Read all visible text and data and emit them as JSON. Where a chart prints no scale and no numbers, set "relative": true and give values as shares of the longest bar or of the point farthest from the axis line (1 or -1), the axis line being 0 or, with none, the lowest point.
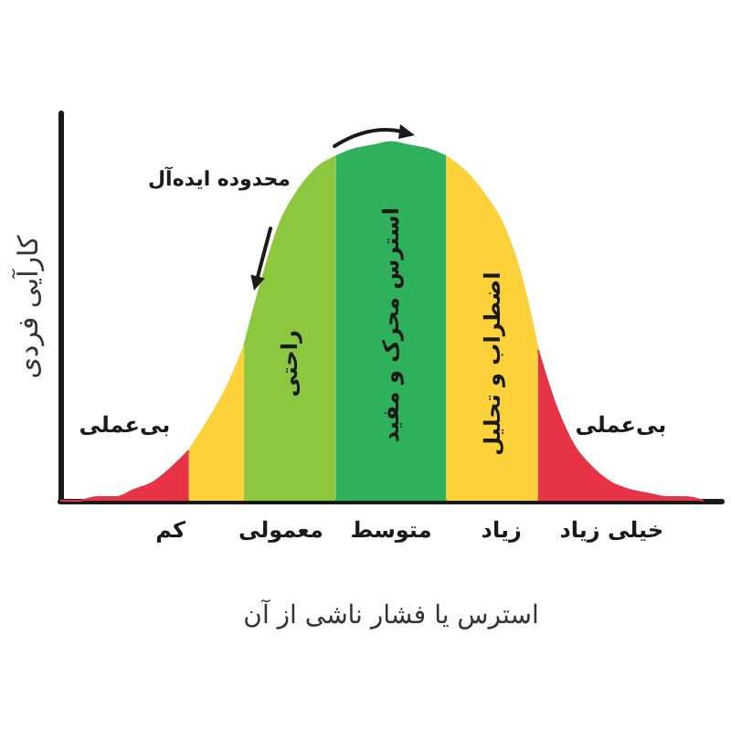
{
  "chart_data": {
    "type": "area",
    "relative": true,
    "xlabel": "استرس یا فشار ناشی از آن",
    "ylabel": "کارآیی فردی",
    "categories": [
      null,
      null,
      null,
      null,
      null,
      null,
      "کم",
      null,
      null,
      null,
      null,
      null,
      "معمولی",
      null,
      null,
      null,
      null,
      null,
      "متوسط",
      null,
      null,
      null,
      null,
      null,
      "زیاد",
      null,
      null,
      null,
      null,
      null,
      "خیلی زیاد",
      null,
      null,
      null,
      null,
      null,
      null
    ],
    "series": [
      {
        "name": "بی‌عملی",
        "color": "#e63346",
        "values": [
          0,
          0,
          0.01,
          0.01,
          0.03,
          0.05,
          0.09,
          0.14,
          null,
          null,
          null,
          null,
          null,
          null,
          null,
          null,
          null,
          null,
          null,
          null,
          null,
          null,
          null,
          null,
          null,
          null,
          null,
          null,
          null,
          null,
          null,
          null,
          null,
          null,
          null,
          null,
          null
        ]
      },
      {
        "color": "#fdd13a",
        "values": [
          null,
          null,
          null,
          null,
          null,
          null,
          null,
          0.14,
          0.22,
          0.31,
          0.43,
          null,
          null,
          null,
          null,
          null,
          null,
          null,
          null,
          null,
          null,
          null,
          null,
          null,
          null,
          null,
          null,
          null,
          null,
          null,
          null,
          null,
          null,
          null,
          null,
          null,
          null
        ]
      },
      {
        "name": "راحتی",
        "color": "#8dc63f",
        "values": [
          null,
          null,
          null,
          null,
          null,
          null,
          null,
          null,
          null,
          null,
          0.43,
          0.62,
          0.78,
          0.87,
          0.93,
          0.96,
          null,
          null,
          null,
          null,
          null,
          null,
          null,
          null,
          null,
          null,
          null,
          null,
          null,
          null,
          null,
          null,
          null,
          null,
          null,
          null,
          null
        ]
      },
      {
        "name": "استرس محرک و مفید",
        "color": "#2fb15c",
        "values": [
          null,
          null,
          null,
          null,
          null,
          null,
          null,
          null,
          null,
          null,
          null,
          null,
          null,
          null,
          null,
          0.96,
          0.98,
          0.99,
          1,
          0.99,
          0.98,
          0.96,
          null,
          null,
          null,
          null,
          null,
          null,
          null,
          null,
          null,
          null,
          null,
          null,
          null,
          null,
          null
        ]
      },
      {
        "name": "اضطراب و تحلیل",
        "color": "#fdd13a",
        "values": [
          null,
          null,
          null,
          null,
          null,
          null,
          null,
          null,
          null,
          null,
          null,
          null,
          null,
          null,
          null,
          null,
          null,
          null,
          null,
          null,
          null,
          0.96,
          0.92,
          0.86,
          0.78,
          0.64,
          0.42,
          null,
          null,
          null,
          null,
          null,
          null,
          null,
          null,
          null,
          null
        ]
      },
      {
        "name": "بی‌عملی",
        "color": "#e63346",
        "values": [
          null,
          null,
          null,
          null,
          null,
          null,
          null,
          null,
          null,
          null,
          null,
          null,
          null,
          null,
          null,
          null,
          null,
          null,
          null,
          null,
          null,
          null,
          null,
          null,
          null,
          null,
          0.42,
          0.26,
          0.15,
          0.09,
          0.05,
          0.03,
          0.02,
          0.01,
          0.01,
          0,
          null
        ]
      }
    ],
    "annotations": [
      "محدوده ایده‌آل"
    ]
  }
}
